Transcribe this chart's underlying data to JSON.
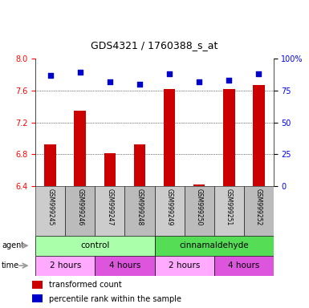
{
  "title": "GDS4321 / 1760388_s_at",
  "samples": [
    "GSM999245",
    "GSM999246",
    "GSM999247",
    "GSM999248",
    "GSM999249",
    "GSM999250",
    "GSM999251",
    "GSM999252"
  ],
  "transformed_count": [
    6.93,
    7.35,
    6.81,
    6.93,
    7.62,
    6.42,
    7.62,
    7.67
  ],
  "percentile_rank": [
    87,
    89,
    82,
    80,
    88,
    82,
    83,
    88
  ],
  "ylim_left": [
    6.4,
    8.0
  ],
  "ylim_right": [
    0,
    100
  ],
  "yticks_left": [
    6.4,
    6.8,
    7.2,
    7.6,
    8.0
  ],
  "yticks_right": [
    0,
    25,
    50,
    75,
    100
  ],
  "bar_color": "#cc0000",
  "dot_color": "#0000cc",
  "agent_groups": [
    {
      "label": "control",
      "start": 0,
      "end": 4,
      "color": "#aaffaa"
    },
    {
      "label": "cinnamaldehyde",
      "start": 4,
      "end": 8,
      "color": "#55dd55"
    }
  ],
  "time_groups": [
    {
      "label": "2 hours",
      "start": 0,
      "end": 2,
      "color": "#ffaaff"
    },
    {
      "label": "4 hours",
      "start": 2,
      "end": 4,
      "color": "#dd55dd"
    },
    {
      "label": "2 hours",
      "start": 4,
      "end": 6,
      "color": "#ffaaff"
    },
    {
      "label": "4 hours",
      "start": 6,
      "end": 8,
      "color": "#dd55dd"
    }
  ],
  "legend_bar_label": "transformed count",
  "legend_dot_label": "percentile rank within the sample",
  "agent_label": "agent",
  "time_label": "time",
  "title_fontsize": 9,
  "tick_fontsize": 7,
  "label_fontsize": 7,
  "sample_fontsize": 5.5,
  "group_fontsize": 7.5
}
